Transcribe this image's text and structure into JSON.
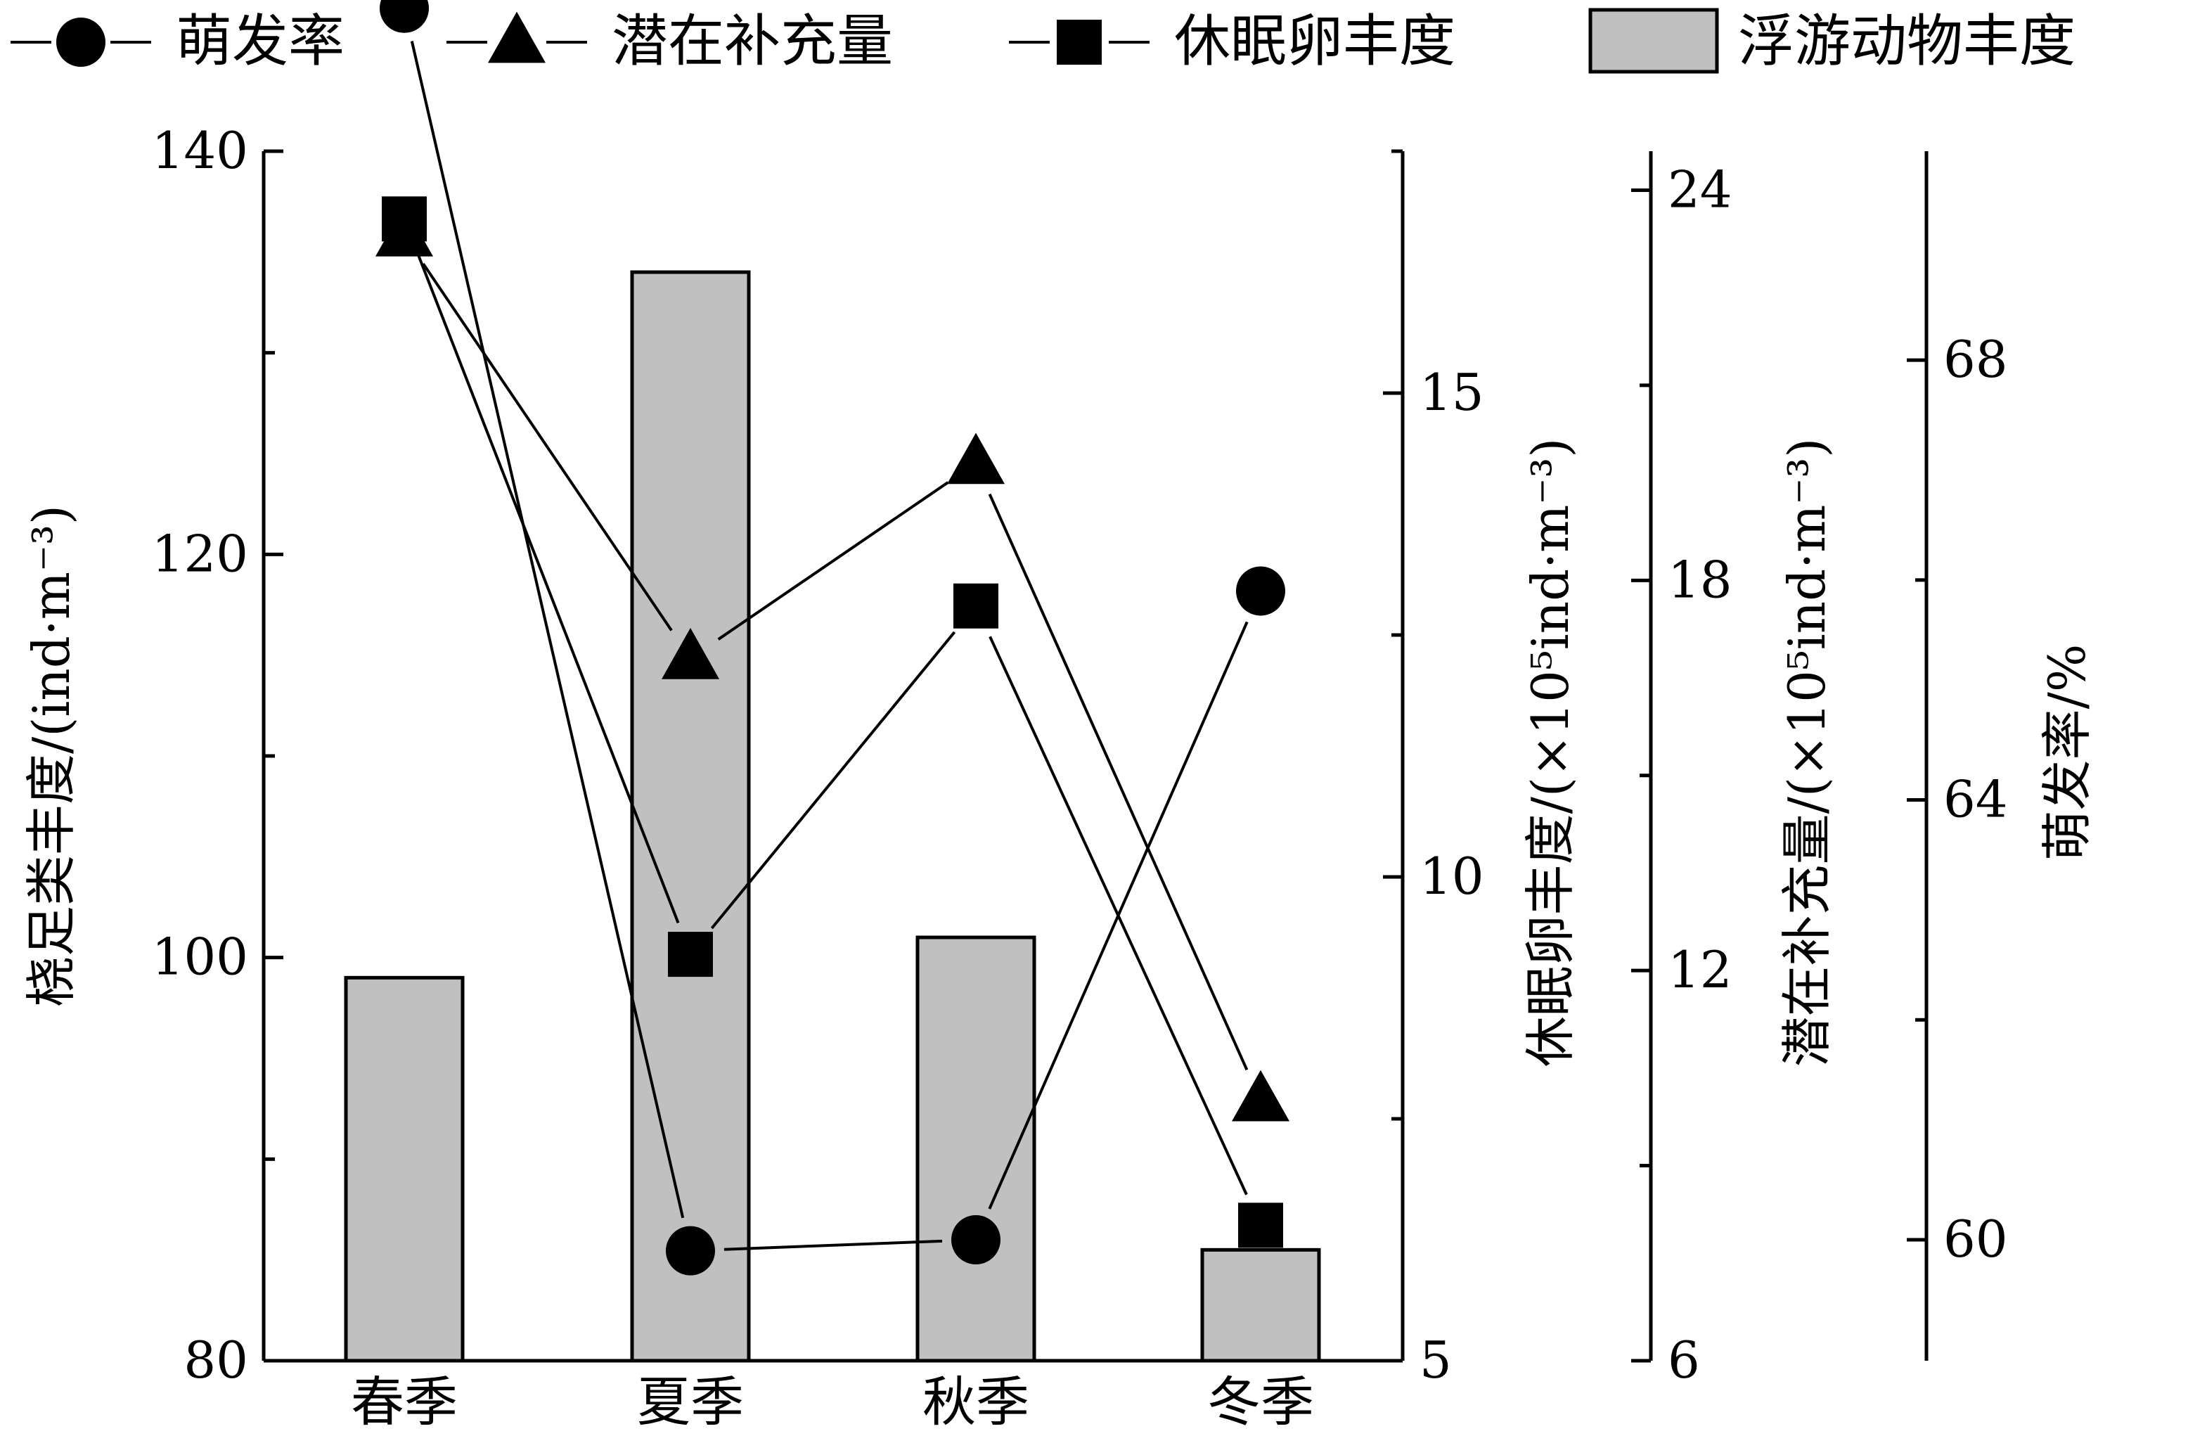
{
  "chart_data": {
    "type": "bar",
    "categories": [
      "春季",
      "夏季",
      "秋季",
      "冬季"
    ],
    "series": [
      {
        "name": "浮游动物丰度",
        "kind": "bar",
        "axis": "left",
        "values": [
          99,
          134,
          101,
          85.5
        ],
        "color": "#c0c0c0"
      },
      {
        "name": "萌发率",
        "kind": "line",
        "marker": "circle",
        "axis": "germination",
        "values": [
          71.2,
          59.9,
          60.0,
          65.9
        ]
      },
      {
        "name": "潜在补充量",
        "kind": "line",
        "marker": "triangle",
        "axis": "recruitment",
        "values": [
          23.3,
          16.8,
          19.8,
          10.0
        ]
      },
      {
        "name": "休眠卵丰度",
        "kind": "line",
        "marker": "square",
        "axis": "eggs",
        "values": [
          16.8,
          9.2,
          12.8,
          6.4
        ]
      }
    ],
    "axes": {
      "left": {
        "label": "桡足类丰度/(ind·m⁻³)",
        "range": [
          80,
          140
        ],
        "ticks": [
          80,
          100,
          120,
          140
        ]
      },
      "eggs": {
        "label": "休眠卵丰度/(×10⁵ind·m⁻³)",
        "range": [
          5,
          17.5
        ],
        "ticks": [
          5,
          10,
          15
        ]
      },
      "recruitment": {
        "label": "潜在补充量/(×10⁵ind·m⁻³)",
        "range": [
          6,
          24.6
        ],
        "ticks": [
          6,
          12,
          18,
          24
        ]
      },
      "germination": {
        "label": "萌发率/%",
        "range": [
          58.9,
          69.9
        ],
        "ticks": [
          60,
          64,
          68
        ]
      }
    },
    "legend_position": "top",
    "grid": false
  }
}
